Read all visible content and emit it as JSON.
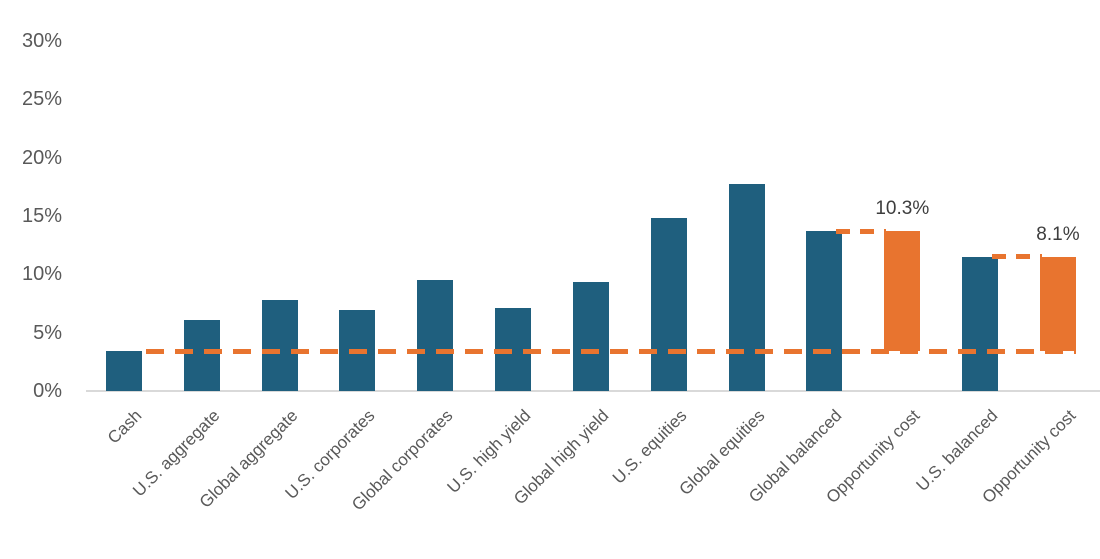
{
  "chart_data": {
    "type": "bar",
    "title": "",
    "xlabel": "",
    "ylabel": "",
    "ylim": [
      0,
      30
    ],
    "grid": false,
    "legend": "none",
    "ytick_labels": [
      "0%",
      "5%",
      "10%",
      "15%",
      "20%",
      "25%",
      "30%"
    ],
    "yticks": [
      0,
      5,
      10,
      15,
      20,
      25,
      30
    ],
    "categories": [
      "Cash",
      "U.S. aggregate",
      "Global aggregate",
      "U.S. corporates",
      "Global corporates",
      "U.S. high yield",
      "Global high yield",
      "U.S. equities",
      "Global equities",
      "Global balanced",
      "Opportunity cost",
      "U.S. balanced",
      "Opportunity cost"
    ],
    "bars": [
      {
        "label": "Cash",
        "base": 0,
        "top": 3.4,
        "color": "blue",
        "data_label": ""
      },
      {
        "label": "U.S. aggregate",
        "base": 0,
        "top": 6.1,
        "color": "blue",
        "data_label": ""
      },
      {
        "label": "Global aggregate",
        "base": 0,
        "top": 7.8,
        "color": "blue",
        "data_label": ""
      },
      {
        "label": "U.S. corporates",
        "base": 0,
        "top": 6.9,
        "color": "blue",
        "data_label": ""
      },
      {
        "label": "Global corporates",
        "base": 0,
        "top": 9.5,
        "color": "blue",
        "data_label": ""
      },
      {
        "label": "U.S. high yield",
        "base": 0,
        "top": 7.1,
        "color": "blue",
        "data_label": ""
      },
      {
        "label": "Global high yield",
        "base": 0,
        "top": 9.3,
        "color": "blue",
        "data_label": ""
      },
      {
        "label": "U.S. equities",
        "base": 0,
        "top": 14.8,
        "color": "blue",
        "data_label": ""
      },
      {
        "label": "Global equities",
        "base": 0,
        "top": 17.7,
        "color": "blue",
        "data_label": ""
      },
      {
        "label": "Global balanced",
        "base": 0,
        "top": 13.7,
        "color": "blue",
        "data_label": ""
      },
      {
        "label": "Opportunity cost",
        "base": 3.4,
        "top": 13.7,
        "color": "orange",
        "data_label": "10.3%"
      },
      {
        "label": "U.S. balanced",
        "base": 0,
        "top": 11.5,
        "color": "blue",
        "data_label": ""
      },
      {
        "label": "Opportunity cost",
        "base": 3.4,
        "top": 11.5,
        "color": "orange",
        "data_label": "8.1%"
      }
    ],
    "reference_line": {
      "value": 3.4,
      "style": "dashed"
    },
    "connectors": [
      {
        "from_index": 9,
        "to_index": 10,
        "value": 13.7
      },
      {
        "from_index": 11,
        "to_index": 12,
        "value": 11.5
      }
    ],
    "colors": {
      "bar_blue": "#1f5f7e",
      "bar_orange": "#e8742f",
      "reference_line": "#e8742f",
      "axis_text": "#595959",
      "data_label_text": "#3d3d3d",
      "axis_line": "#d9d9d9"
    }
  }
}
